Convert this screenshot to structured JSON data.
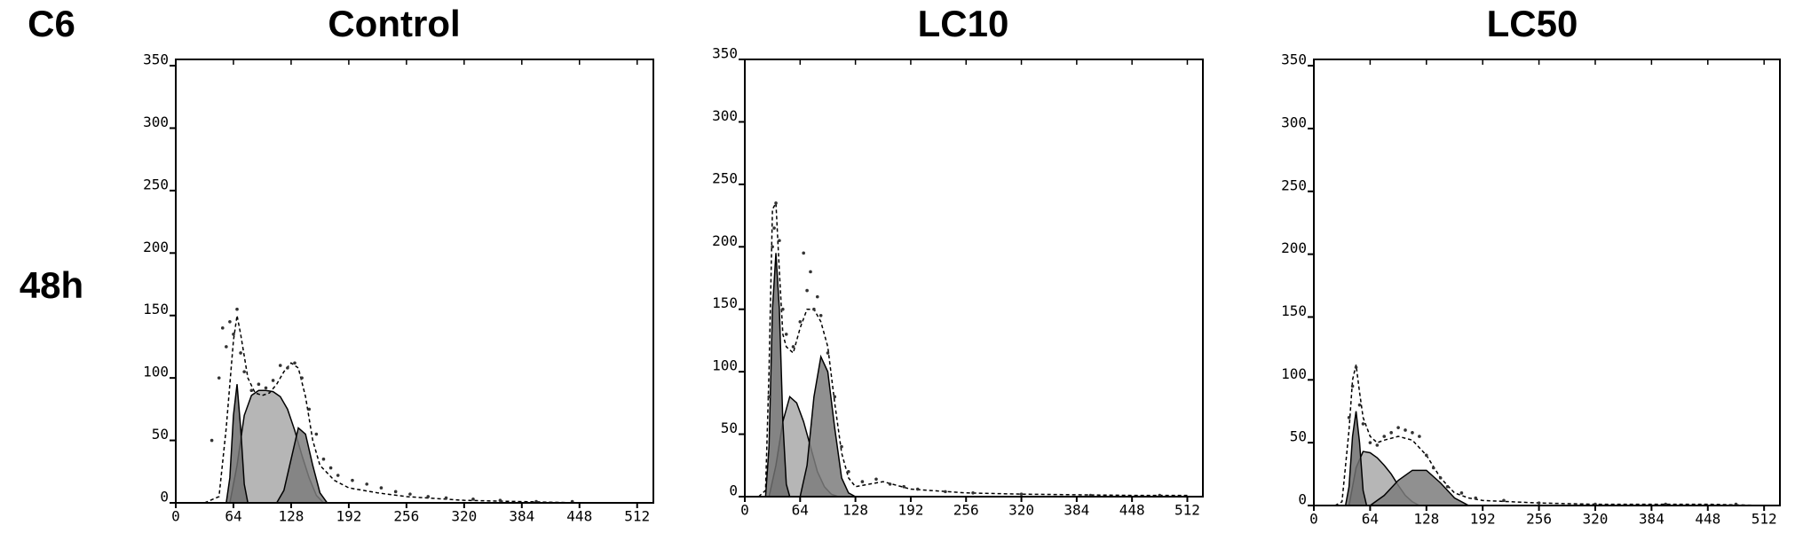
{
  "row_label": "48h",
  "corner_label": "C6",
  "chart_data": [
    {
      "type": "histogram-fit",
      "title": "Control",
      "xlim": [
        0,
        530
      ],
      "ylim": [
        0,
        355
      ],
      "xticks": [
        0,
        64,
        128,
        192,
        256,
        320,
        384,
        448,
        512
      ],
      "yticks": [
        0,
        50,
        100,
        150,
        200,
        250,
        300,
        350
      ],
      "grid": false,
      "series": [
        {
          "kind": "area",
          "color": "#a9a9a9",
          "x": [
            60,
            68,
            76,
            84,
            92,
            100,
            108,
            116,
            124,
            132,
            140,
            148,
            156,
            164
          ],
          "values": [
            0,
            30,
            70,
            86,
            90,
            90,
            89,
            85,
            75,
            58,
            38,
            20,
            6,
            0
          ]
        },
        {
          "kind": "area",
          "color": "#6f6f6f",
          "x": [
            56,
            60,
            64,
            68,
            72,
            76,
            80
          ],
          "values": [
            0,
            20,
            70,
            95,
            60,
            15,
            0
          ]
        },
        {
          "kind": "area",
          "color": "#7d7d7d",
          "x": [
            112,
            120,
            128,
            136,
            144,
            152,
            160,
            168
          ],
          "values": [
            0,
            10,
            35,
            60,
            55,
            30,
            8,
            0
          ]
        },
        {
          "kind": "line",
          "dashed": true,
          "color": "#000000",
          "x": [
            32,
            48,
            56,
            64,
            68,
            72,
            80,
            88,
            96,
            104,
            112,
            120,
            128,
            136,
            144,
            152,
            160,
            176,
            192,
            224,
            256,
            320,
            384,
            448
          ],
          "values": [
            0,
            5,
            60,
            130,
            150,
            135,
            100,
            88,
            86,
            88,
            95,
            105,
            112,
            108,
            85,
            50,
            30,
            18,
            12,
            8,
            5,
            2,
            1,
            0
          ]
        },
        {
          "kind": "dots",
          "color": "#333333",
          "x": [
            40,
            48,
            52,
            56,
            60,
            64,
            68,
            72,
            76,
            84,
            92,
            100,
            108,
            116,
            124,
            132,
            140,
            148,
            156,
            164,
            172,
            180,
            196,
            212,
            228,
            244,
            260,
            280,
            300,
            330,
            360,
            400,
            440
          ],
          "values": [
            50,
            100,
            140,
            125,
            145,
            135,
            155,
            120,
            105,
            90,
            95,
            92,
            98,
            110,
            108,
            112,
            100,
            75,
            55,
            35,
            28,
            22,
            18,
            15,
            12,
            9,
            7,
            5,
            4,
            3,
            2,
            1,
            1
          ]
        }
      ]
    },
    {
      "type": "histogram-fit",
      "title": "LC10",
      "xlim": [
        0,
        530
      ],
      "ylim": [
        0,
        350
      ],
      "xticks": [
        0,
        64,
        128,
        192,
        256,
        320,
        384,
        448,
        512
      ],
      "yticks": [
        0,
        50,
        100,
        150,
        200,
        250,
        300,
        350
      ],
      "grid": false,
      "series": [
        {
          "kind": "area",
          "color": "#a9a9a9",
          "x": [
            28,
            36,
            44,
            52,
            60,
            68,
            76,
            84,
            92,
            100,
            108
          ],
          "values": [
            0,
            25,
            60,
            80,
            75,
            60,
            40,
            20,
            8,
            2,
            0
          ]
        },
        {
          "kind": "area",
          "color": "#6f6f6f",
          "x": [
            24,
            28,
            32,
            36,
            40,
            44,
            48,
            52
          ],
          "values": [
            0,
            40,
            150,
            195,
            150,
            60,
            10,
            0
          ]
        },
        {
          "kind": "area",
          "color": "#7d7d7d",
          "x": [
            64,
            72,
            80,
            88,
            96,
            104,
            112,
            120,
            128
          ],
          "values": [
            0,
            25,
            80,
            112,
            100,
            55,
            15,
            3,
            0
          ]
        },
        {
          "kind": "line",
          "dashed": true,
          "color": "#000000",
          "x": [
            16,
            24,
            28,
            32,
            36,
            40,
            44,
            48,
            56,
            64,
            72,
            80,
            88,
            96,
            104,
            112,
            120,
            128,
            144,
            160,
            192,
            256,
            320,
            448,
            512
          ],
          "values": [
            0,
            5,
            100,
            230,
            235,
            180,
            130,
            120,
            115,
            135,
            150,
            150,
            140,
            120,
            75,
            35,
            15,
            8,
            10,
            12,
            6,
            3,
            2,
            1,
            1
          ]
        },
        {
          "kind": "dots",
          "color": "#333333",
          "x": [
            28,
            32,
            34,
            36,
            40,
            44,
            48,
            56,
            64,
            68,
            72,
            76,
            80,
            84,
            88,
            96,
            104,
            112,
            120,
            136,
            152,
            168,
            184,
            200,
            232,
            264,
            320,
            400,
            480
          ],
          "values": [
            80,
            200,
            215,
            235,
            205,
            150,
            130,
            120,
            140,
            195,
            165,
            180,
            150,
            160,
            145,
            115,
            80,
            40,
            20,
            12,
            14,
            10,
            8,
            6,
            4,
            3,
            2,
            1,
            1
          ]
        }
      ]
    },
    {
      "type": "histogram-fit",
      "title": "LC50",
      "xlim": [
        0,
        530
      ],
      "ylim": [
        0,
        355
      ],
      "xticks": [
        0,
        64,
        128,
        192,
        256,
        320,
        384,
        448,
        512
      ],
      "yticks": [
        0,
        50,
        100,
        150,
        200,
        250,
        300,
        350
      ],
      "grid": false,
      "series": [
        {
          "kind": "area",
          "color": "#a9a9a9",
          "x": [
            40,
            48,
            56,
            64,
            72,
            80,
            88,
            96,
            104,
            112,
            120
          ],
          "values": [
            0,
            30,
            43,
            42,
            38,
            32,
            25,
            16,
            8,
            3,
            0
          ]
        },
        {
          "kind": "area",
          "color": "#6f6f6f",
          "x": [
            36,
            40,
            44,
            48,
            52,
            56,
            60
          ],
          "values": [
            0,
            15,
            55,
            75,
            50,
            12,
            0
          ]
        },
        {
          "kind": "area",
          "color": "#7d7d7d",
          "x": [
            64,
            80,
            96,
            112,
            128,
            144,
            160,
            176
          ],
          "values": [
            0,
            8,
            20,
            28,
            28,
            18,
            6,
            0
          ]
        },
        {
          "kind": "line",
          "dashed": true,
          "color": "#000000",
          "x": [
            24,
            32,
            40,
            44,
            48,
            52,
            56,
            64,
            72,
            80,
            96,
            112,
            128,
            144,
            160,
            176,
            192,
            256,
            320,
            448,
            512
          ],
          "values": [
            0,
            3,
            60,
            100,
            112,
            90,
            70,
            55,
            50,
            52,
            55,
            52,
            40,
            22,
            10,
            6,
            4,
            2,
            1,
            1,
            0
          ]
        },
        {
          "kind": "dots",
          "color": "#333333",
          "x": [
            40,
            44,
            48,
            52,
            56,
            64,
            72,
            80,
            88,
            96,
            104,
            112,
            120,
            128,
            136,
            144,
            152,
            168,
            184,
            216,
            256,
            320,
            400,
            480
          ],
          "values": [
            70,
            95,
            110,
            80,
            65,
            50,
            48,
            55,
            58,
            62,
            60,
            58,
            55,
            40,
            30,
            22,
            15,
            10,
            6,
            4,
            2,
            1,
            1,
            1
          ]
        }
      ]
    }
  ]
}
